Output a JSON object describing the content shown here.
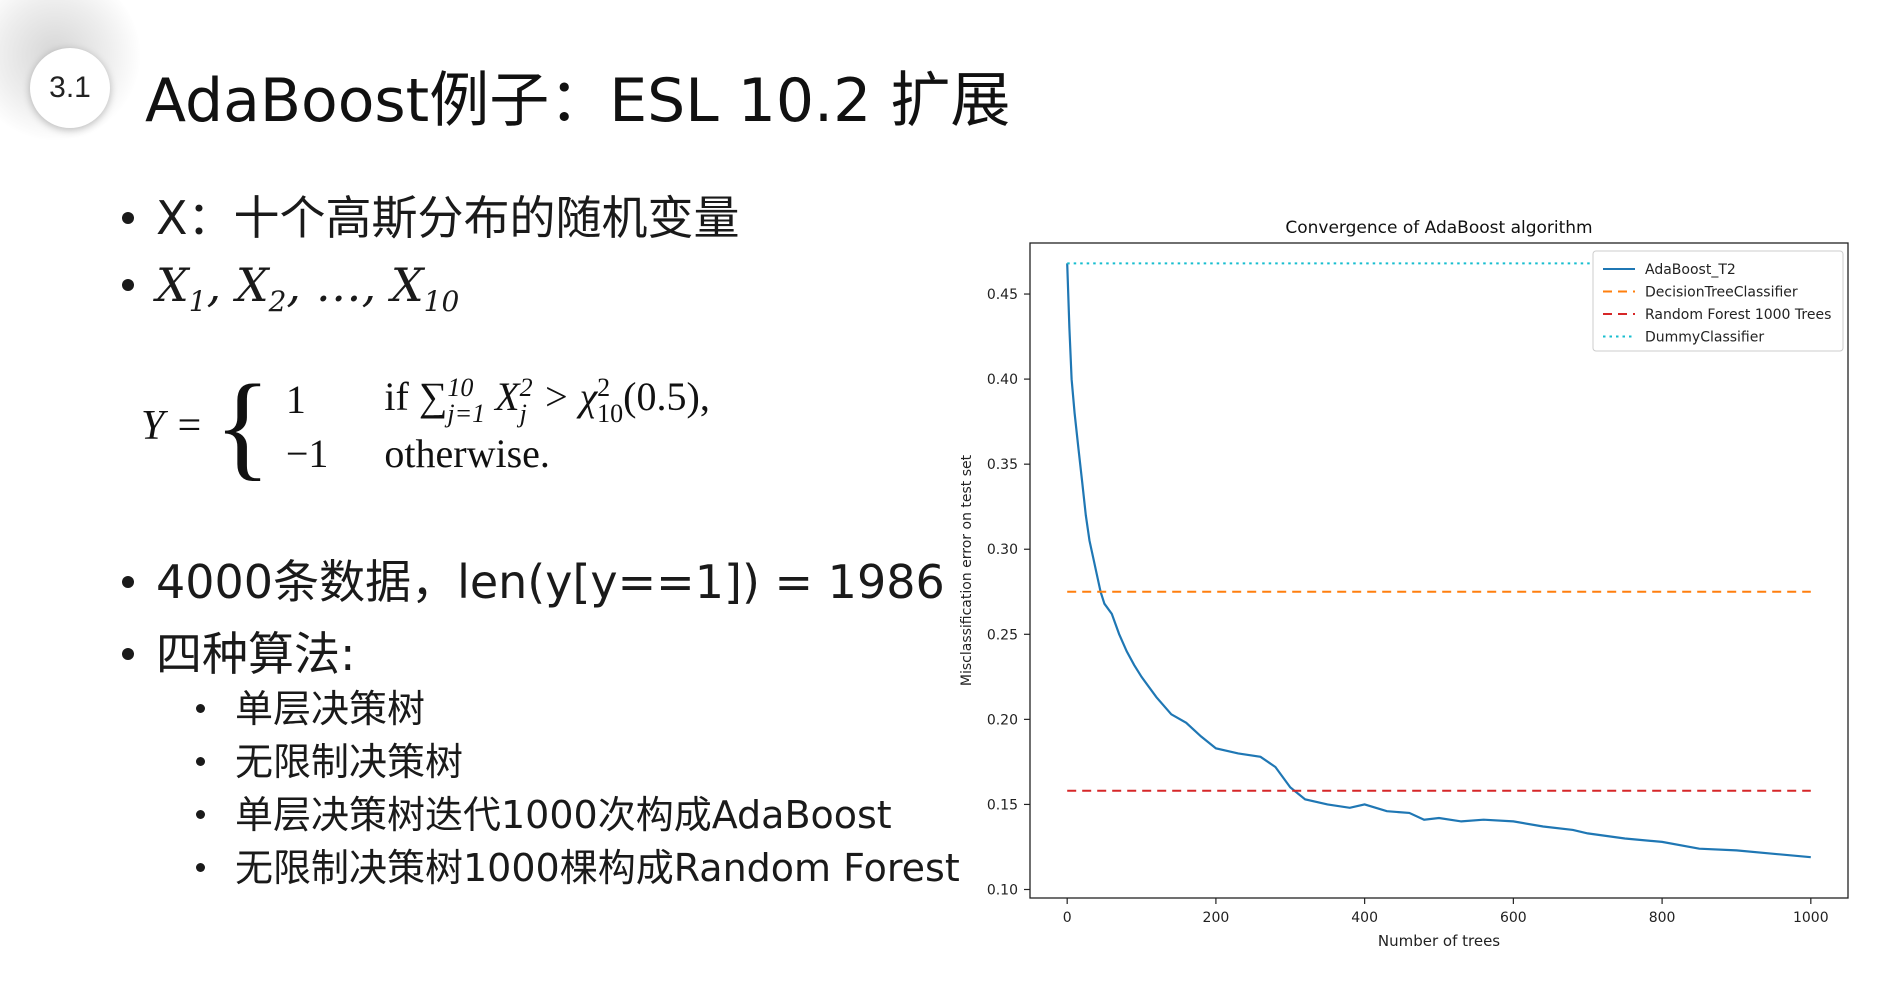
{
  "slide": {
    "number": "3.1",
    "title": "AdaBoost例子：ESL 10.2 扩展",
    "bullet1": "X：十个高斯分布的随机变量",
    "bullet2_vars": "X",
    "formula": {
      "lhs": "Y",
      "case1_value": "1",
      "case1_cond_prefix": "if",
      "case1_cond_middle": "X",
      "case1_cond_tail": "> χ",
      "case1_cond_arg": "(0.5),",
      "case2_value": "−1",
      "case2_cond": "otherwise."
    },
    "bullet3": "4000条数据，len(y[y==1]) = 1986",
    "bullet4": "四种算法:",
    "sub_items": [
      "单层决策树",
      "无限制决策树",
      "单层决策树迭代1000次构成AdaBoost",
      "无限制决策树1000棵构成Random Forest"
    ]
  },
  "chart_data": {
    "type": "line",
    "title": "Convergence of AdaBoost algorithm",
    "xlabel": "Number of trees",
    "ylabel": "Misclassification error on test set",
    "xlim": [
      -50,
      1050
    ],
    "ylim": [
      0.095,
      0.48
    ],
    "xticks": [
      0,
      200,
      400,
      600,
      800,
      1000
    ],
    "xtick_labels": [
      "0",
      "200",
      "400",
      "600",
      "800",
      "1000"
    ],
    "yticks": [
      0.1,
      0.15,
      0.2,
      0.25,
      0.3,
      0.35,
      0.4,
      0.45
    ],
    "ytick_labels": [
      "0.10",
      "0.15",
      "0.20",
      "0.25",
      "0.30",
      "0.35",
      "0.40",
      "0.45"
    ],
    "legend_position": "top-right",
    "series": [
      {
        "name": "AdaBoost_T2",
        "style": "solid",
        "color": "#1f77b4",
        "x": [
          0,
          3,
          6,
          10,
          15,
          20,
          25,
          30,
          35,
          40,
          45,
          50,
          60,
          70,
          80,
          90,
          100,
          120,
          140,
          160,
          180,
          200,
          230,
          260,
          280,
          300,
          320,
          350,
          380,
          400,
          430,
          460,
          480,
          500,
          530,
          560,
          600,
          640,
          680,
          700,
          750,
          800,
          850,
          900,
          950,
          1000
        ],
        "y": [
          0.468,
          0.43,
          0.4,
          0.38,
          0.36,
          0.34,
          0.32,
          0.305,
          0.295,
          0.285,
          0.275,
          0.268,
          0.262,
          0.25,
          0.24,
          0.232,
          0.225,
          0.213,
          0.203,
          0.198,
          0.19,
          0.183,
          0.18,
          0.178,
          0.172,
          0.16,
          0.153,
          0.15,
          0.148,
          0.15,
          0.146,
          0.145,
          0.141,
          0.142,
          0.14,
          0.141,
          0.14,
          0.137,
          0.135,
          0.133,
          0.13,
          0.128,
          0.124,
          0.123,
          0.121,
          0.119
        ]
      },
      {
        "name": "DecisionTreeClassifier",
        "style": "dashed",
        "color": "#ff7f0e",
        "x": [
          0,
          1000
        ],
        "y": [
          0.275,
          0.275
        ]
      },
      {
        "name": "Random Forest 1000 Trees",
        "style": "dashed",
        "color": "#d62728",
        "x": [
          0,
          1000
        ],
        "y": [
          0.158,
          0.158
        ]
      },
      {
        "name": "DummyClassifier",
        "style": "dotted",
        "color": "#17becf",
        "x": [
          0,
          1000
        ],
        "y": [
          0.468,
          0.468
        ]
      }
    ]
  }
}
